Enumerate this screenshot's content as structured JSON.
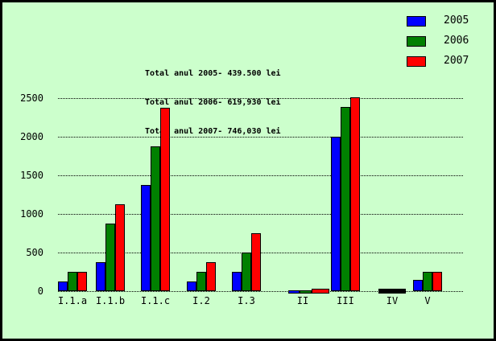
{
  "background_color": "#ccffcc",
  "annotations": {
    "lines": [
      "Total anul 2005- 439.500 lei",
      "Total anul 2006- 619,930 lei",
      "Total anul 2007- 746,030 lei"
    ]
  },
  "legend": {
    "position": "top-right",
    "items": [
      {
        "label": "2005",
        "color": "#0000ff"
      },
      {
        "label": "2006",
        "color": "#008000"
      },
      {
        "label": "2007",
        "color": "#ff0000"
      }
    ]
  },
  "chart_data": {
    "type": "bar",
    "title": "",
    "xlabel": "",
    "ylabel": "",
    "categories": [
      "I.1.a",
      "I.1.b",
      "I.1.c",
      "I.2",
      "I.3",
      "II",
      "III",
      "IV",
      "V"
    ],
    "series": [
      {
        "name": "2005",
        "color": "#0000ff",
        "values": [
          125,
          375,
          1375,
          125,
          250,
          30,
          2000,
          15,
          150
        ]
      },
      {
        "name": "2006",
        "color": "#008000",
        "values": [
          250,
          875,
          1875,
          250,
          500,
          45,
          2390,
          15,
          250
        ]
      },
      {
        "name": "2007",
        "color": "#ff0000",
        "values": [
          250,
          1125,
          2375,
          375,
          750,
          65,
          2510,
          15,
          250
        ]
      }
    ],
    "ylim": [
      0,
      2500
    ],
    "yticks": [
      0,
      500,
      1000,
      1500,
      2000,
      2500
    ],
    "grid": "horizontal-dotted",
    "legend_position": "top-right"
  }
}
